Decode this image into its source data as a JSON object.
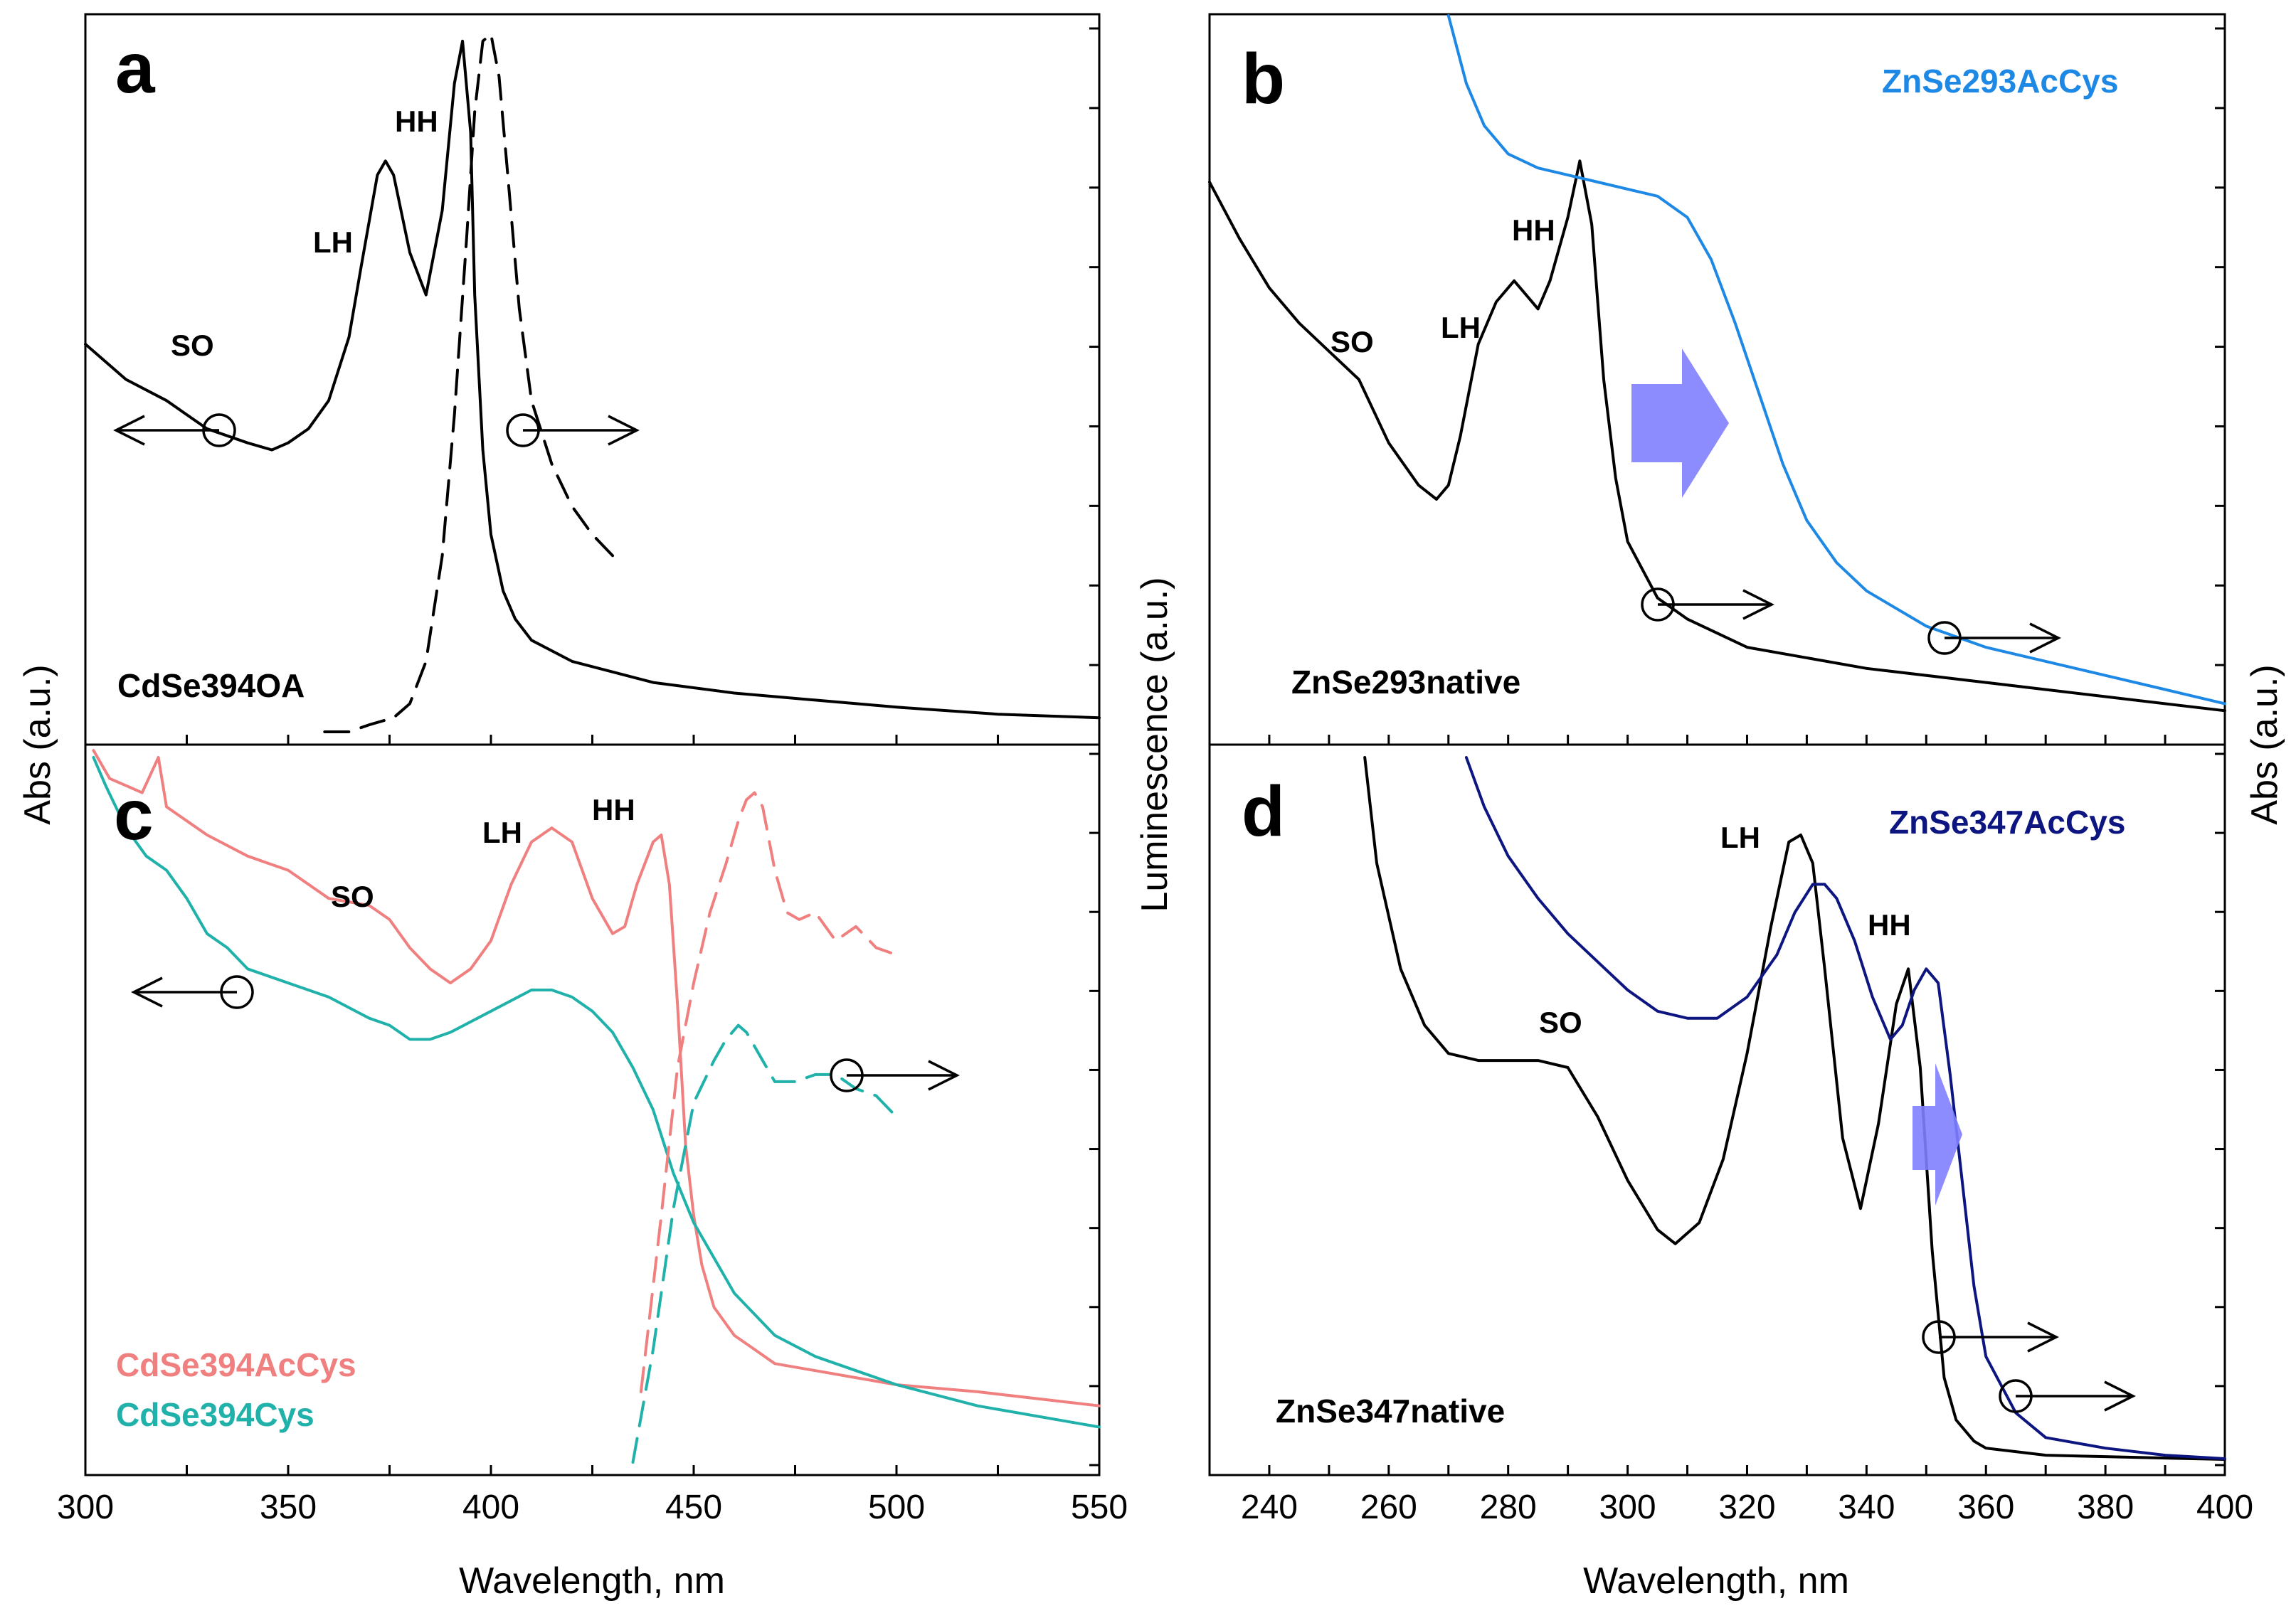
{
  "chart_data": [
    {
      "panel": "a",
      "type": "line",
      "sample_label": "CdSe394OA",
      "xlim": [
        300,
        550
      ],
      "annotations": [
        "SO",
        "LH",
        "HH"
      ],
      "series": [
        {
          "name": "Abs",
          "style": "solid",
          "color": "#000000",
          "axis": "left",
          "x": [
            300,
            310,
            320,
            330,
            340,
            346,
            350,
            355,
            360,
            365,
            368,
            372,
            374,
            376,
            380,
            384,
            388,
            391,
            393,
            395,
            396,
            398,
            400,
            403,
            406,
            410,
            420,
            440,
            460,
            480,
            500,
            525,
            550
          ],
          "y": [
            0.55,
            0.5,
            0.47,
            0.43,
            0.41,
            0.4,
            0.41,
            0.43,
            0.47,
            0.56,
            0.66,
            0.79,
            0.81,
            0.79,
            0.68,
            0.62,
            0.74,
            0.92,
            0.98,
            0.85,
            0.62,
            0.4,
            0.28,
            0.2,
            0.16,
            0.13,
            0.1,
            0.07,
            0.055,
            0.045,
            0.035,
            0.025,
            0.02
          ]
        },
        {
          "name": "Luminescence",
          "style": "dashed",
          "color": "#000000",
          "axis": "right",
          "x": [
            359,
            365,
            370,
            376,
            380,
            384,
            388,
            391,
            394,
            396,
            398,
            400,
            402,
            404,
            407,
            410,
            415,
            420,
            425,
            430
          ],
          "y": [
            0.0,
            0.0,
            0.01,
            0.02,
            0.04,
            0.1,
            0.25,
            0.45,
            0.7,
            0.88,
            0.98,
            0.99,
            0.93,
            0.8,
            0.6,
            0.47,
            0.38,
            0.32,
            0.28,
            0.25
          ]
        }
      ]
    },
    {
      "panel": "b",
      "type": "line",
      "sample_label": "ZnSe293native",
      "xlim": [
        230,
        400
      ],
      "annotations": [
        "SO",
        "LH",
        "HH"
      ],
      "series": [
        {
          "name": "ZnSe293native Abs",
          "style": "solid",
          "color": "#000000",
          "axis": "left",
          "x": [
            230,
            235,
            240,
            245,
            250,
            255,
            260,
            265,
            268,
            270,
            272,
            275,
            278,
            281,
            283,
            285,
            287,
            290,
            292,
            294,
            296,
            298,
            300,
            305,
            310,
            320,
            340,
            360,
            380,
            400
          ],
          "y": [
            0.78,
            0.7,
            0.63,
            0.58,
            0.54,
            0.5,
            0.41,
            0.35,
            0.33,
            0.35,
            0.42,
            0.55,
            0.61,
            0.64,
            0.62,
            0.6,
            0.64,
            0.73,
            0.81,
            0.72,
            0.5,
            0.36,
            0.27,
            0.19,
            0.16,
            0.12,
            0.09,
            0.07,
            0.05,
            0.03
          ]
        },
        {
          "name": "ZnSe293AcCys Abs",
          "style": "solid",
          "color": "#1e88e5",
          "axis": "left",
          "x": [
            270,
            273,
            276,
            280,
            285,
            290,
            295,
            300,
            305,
            310,
            314,
            318,
            322,
            326,
            330,
            335,
            340,
            350,
            360,
            370,
            380,
            390,
            400
          ],
          "y": [
            1.02,
            0.92,
            0.86,
            0.82,
            0.8,
            0.79,
            0.78,
            0.77,
            0.76,
            0.73,
            0.67,
            0.58,
            0.48,
            0.38,
            0.3,
            0.24,
            0.2,
            0.15,
            0.12,
            0.1,
            0.08,
            0.06,
            0.04
          ]
        }
      ]
    },
    {
      "panel": "c",
      "type": "line",
      "xlim": [
        300,
        550
      ],
      "annotations": [
        "SO",
        "LH",
        "HH"
      ],
      "legend": [
        {
          "label": "CdSe394AcCys",
          "color": "#f08080"
        },
        {
          "label": "CdSe394Cys",
          "color": "#20b2aa"
        }
      ],
      "series": [
        {
          "name": "CdSe394AcCys Abs",
          "style": "solid",
          "color": "#f08080",
          "axis": "left",
          "x": [
            302,
            306,
            310,
            314,
            318,
            320,
            325,
            330,
            340,
            350,
            360,
            370,
            375,
            380,
            385,
            390,
            395,
            400,
            405,
            410,
            415,
            420,
            425,
            430,
            433,
            436,
            440,
            442,
            444,
            446,
            448,
            450,
            452,
            455,
            460,
            465,
            470,
            480,
            490,
            500,
            520,
            550
          ],
          "y": [
            1.01,
            0.97,
            0.96,
            0.95,
            1.0,
            0.93,
            0.91,
            0.89,
            0.86,
            0.84,
            0.8,
            0.79,
            0.77,
            0.73,
            0.7,
            0.68,
            0.7,
            0.74,
            0.82,
            0.88,
            0.9,
            0.88,
            0.8,
            0.75,
            0.76,
            0.82,
            0.88,
            0.89,
            0.82,
            0.65,
            0.45,
            0.35,
            0.28,
            0.22,
            0.18,
            0.16,
            0.14,
            0.13,
            0.12,
            0.11,
            0.1,
            0.08
          ]
        },
        {
          "name": "CdSe394Cys Abs",
          "style": "solid",
          "color": "#20b2aa",
          "axis": "left",
          "x": [
            302,
            305,
            310,
            315,
            320,
            325,
            330,
            335,
            340,
            350,
            360,
            370,
            375,
            380,
            385,
            390,
            400,
            410,
            415,
            420,
            425,
            430,
            435,
            440,
            445,
            450,
            455,
            460,
            470,
            480,
            490,
            500,
            520,
            550
          ],
          "y": [
            1.0,
            0.96,
            0.9,
            0.86,
            0.84,
            0.8,
            0.75,
            0.73,
            0.7,
            0.68,
            0.66,
            0.63,
            0.62,
            0.6,
            0.6,
            0.61,
            0.64,
            0.67,
            0.67,
            0.66,
            0.64,
            0.61,
            0.56,
            0.5,
            0.41,
            0.34,
            0.29,
            0.24,
            0.18,
            0.15,
            0.13,
            0.11,
            0.08,
            0.05
          ]
        },
        {
          "name": "CdSe394AcCys Luminescence",
          "style": "dashed",
          "color": "#f08080",
          "axis": "right",
          "x": [
            437,
            442,
            446,
            450,
            454,
            458,
            461,
            463,
            465,
            467,
            470,
            473,
            476,
            480,
            485,
            490,
            495,
            500
          ],
          "y": [
            0.1,
            0.35,
            0.56,
            0.68,
            0.78,
            0.85,
            0.91,
            0.94,
            0.95,
            0.93,
            0.84,
            0.78,
            0.77,
            0.78,
            0.74,
            0.76,
            0.73,
            0.72
          ]
        },
        {
          "name": "CdSe394Cys Luminescence",
          "style": "dashed",
          "color": "#20b2aa",
          "axis": "right",
          "x": [
            435,
            440,
            445,
            450,
            455,
            458,
            461,
            463,
            466,
            470,
            475,
            480,
            485,
            490,
            495,
            500
          ],
          "y": [
            0.0,
            0.16,
            0.36,
            0.51,
            0.57,
            0.6,
            0.62,
            0.61,
            0.58,
            0.54,
            0.54,
            0.55,
            0.55,
            0.53,
            0.52,
            0.49
          ]
        }
      ]
    },
    {
      "panel": "d",
      "type": "line",
      "sample_label": "ZnSe347native",
      "xlim": [
        230,
        400
      ],
      "annotations": [
        "SO",
        "LH",
        "HH"
      ],
      "series": [
        {
          "name": "ZnSe347native Abs",
          "style": "solid",
          "color": "#000000",
          "axis": "left",
          "x": [
            256,
            258,
            262,
            266,
            270,
            275,
            280,
            285,
            290,
            295,
            300,
            305,
            308,
            312,
            316,
            320,
            324,
            327,
            329,
            331,
            333,
            336,
            339,
            342,
            345,
            347,
            349,
            351,
            353,
            355,
            358,
            360,
            365,
            370,
            380,
            390,
            400
          ],
          "y": [
            1.0,
            0.85,
            0.7,
            0.62,
            0.58,
            0.57,
            0.57,
            0.57,
            0.56,
            0.49,
            0.4,
            0.33,
            0.31,
            0.34,
            0.43,
            0.58,
            0.76,
            0.88,
            0.89,
            0.85,
            0.7,
            0.46,
            0.36,
            0.48,
            0.65,
            0.7,
            0.56,
            0.3,
            0.12,
            0.06,
            0.03,
            0.02,
            0.015,
            0.01,
            0.008,
            0.006,
            0.004
          ]
        },
        {
          "name": "ZnSe347AcCys Abs",
          "style": "solid",
          "color": "#0d1680",
          "axis": "left",
          "x": [
            273,
            276,
            280,
            285,
            290,
            295,
            300,
            305,
            310,
            315,
            320,
            325,
            328,
            331,
            333,
            335,
            338,
            341,
            344,
            346,
            348,
            350,
            352,
            354,
            356,
            358,
            360,
            365,
            370,
            380,
            390,
            400
          ],
          "y": [
            1.0,
            0.93,
            0.86,
            0.8,
            0.75,
            0.71,
            0.67,
            0.64,
            0.63,
            0.63,
            0.66,
            0.72,
            0.78,
            0.82,
            0.82,
            0.8,
            0.74,
            0.66,
            0.6,
            0.62,
            0.67,
            0.7,
            0.68,
            0.55,
            0.4,
            0.25,
            0.15,
            0.07,
            0.035,
            0.02,
            0.01,
            0.005
          ]
        }
      ]
    }
  ],
  "labels": {
    "panel_a": "a",
    "panel_b": "b",
    "panel_c": "c",
    "panel_d": "d",
    "a_sample": "CdSe394OA",
    "b_sample_native": "ZnSe293native",
    "b_sample_accys": "ZnSe293AcCys",
    "c_legend_accys": "CdSe394AcCys",
    "c_legend_cys": "CdSe394Cys",
    "d_sample_native": "ZnSe347native",
    "d_sample_accys": "ZnSe347AcCys",
    "so": "SO",
    "lh": "LH",
    "hh": "HH",
    "left_ylabel": "Abs (a.u.)",
    "middle_ylabel": "Luminescence (a.u.)",
    "right_ylabel": "Abs (a.u.)",
    "xlabel": "Wavelength, nm"
  },
  "axes": {
    "left_x_ticks": [
      "300",
      "350",
      "400",
      "450",
      "500",
      "550"
    ],
    "right_x_ticks": [
      "240",
      "260",
      "280",
      "300",
      "320",
      "340",
      "360",
      "380",
      "400"
    ]
  },
  "colors": {
    "accys_salmon": "#f08080",
    "cys_teal": "#20b2aa",
    "zn293_accys_blue": "#1e88e5",
    "zn347_accys_navy": "#0d1680",
    "shift_arrow": "#8080ff"
  }
}
